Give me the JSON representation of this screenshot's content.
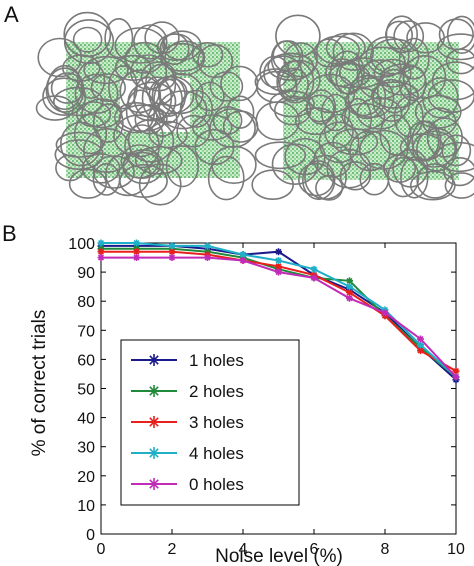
{
  "panel_a": {
    "label": "A",
    "colors": {
      "circle": "#7a7a7a",
      "fill": "#3cb04a"
    }
  },
  "panel_b": {
    "label": "B"
  },
  "chart_data": {
    "type": "line",
    "xlabel": "Noise level (%)",
    "ylabel": "% of correct trials",
    "xlim": [
      0,
      10
    ],
    "ylim": [
      0,
      100
    ],
    "xticks": [
      0,
      2,
      4,
      6,
      8,
      10
    ],
    "yticks": [
      0,
      10,
      20,
      30,
      40,
      50,
      60,
      70,
      80,
      90,
      100
    ],
    "legend_position": "lower-left",
    "grid": false,
    "x": [
      0,
      1,
      2,
      3,
      4,
      5,
      6,
      7,
      8,
      9,
      10
    ],
    "series": [
      {
        "name": "1 holes",
        "color": "#1a1a8c",
        "values": [
          99,
          99,
          99,
          98,
          96,
          97,
          89,
          84,
          76,
          64,
          53
        ]
      },
      {
        "name": "2 holes",
        "color": "#1f8a3a",
        "values": [
          98,
          98,
          98,
          97,
          95,
          91,
          88,
          87,
          75,
          64,
          54
        ]
      },
      {
        "name": "3 holes",
        "color": "#e8201c",
        "values": [
          97,
          97,
          97,
          96,
          94,
          92,
          89,
          83,
          75,
          63,
          56
        ]
      },
      {
        "name": "4 holes",
        "color": "#1fb0c8",
        "values": [
          100,
          100,
          99,
          99,
          96,
          94,
          91,
          85,
          77,
          65,
          54
        ]
      },
      {
        "name": "0 holes",
        "color": "#c22ab8",
        "values": [
          95,
          95,
          95,
          95,
          94,
          90,
          88,
          81,
          76,
          67,
          54
        ]
      }
    ]
  }
}
